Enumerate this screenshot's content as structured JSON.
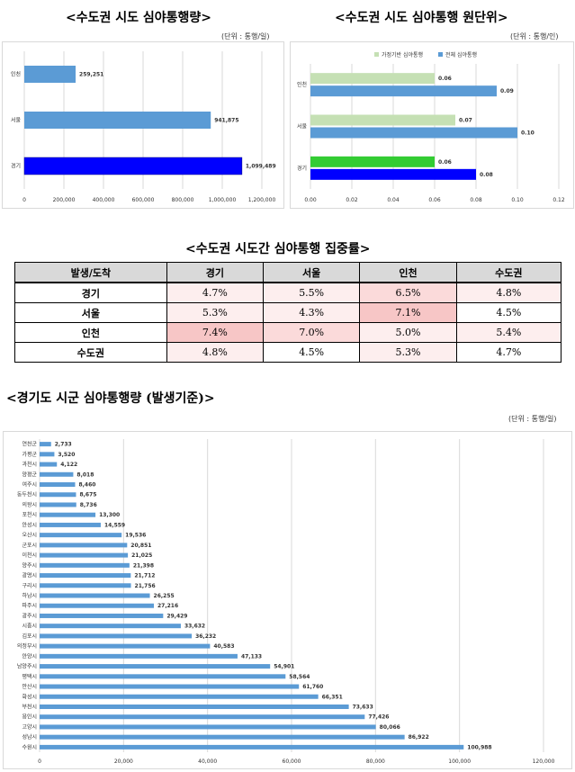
{
  "titles": {
    "left_chart": "<수도권 시도 심야통행량>",
    "right_chart": "<수도권 시도 심야통행 원단위>",
    "table": "<수도권 시도간 심야통행 집중률>",
    "bottom_chart": "<경기도 시군 심야통행량 (발생기준)>"
  },
  "units": {
    "left_chart": "(단위 : 통행/일)",
    "right_chart": "(단위 : 통행/인)",
    "bottom_chart": "(단위 : 통행/일)"
  },
  "colors": {
    "bar_blue": "#5b9bd5",
    "bar_highlight": "#0000ff",
    "bar_light_green": "#c5e0b4",
    "bar_green": "#33cc33",
    "grid": "#d9d9d9",
    "header_gray": "#d9d9d9"
  },
  "chart_data": [
    {
      "type": "bar",
      "orientation": "horizontal",
      "title": "<수도권 시도 심야통행량>",
      "categories": [
        "인천",
        "서울",
        "경기"
      ],
      "values": [
        259251,
        941875,
        1099489
      ],
      "value_labels": [
        "259,251",
        "941,875",
        "1,099,489"
      ],
      "xlim": [
        0,
        1200000
      ],
      "ticks": [
        "0",
        "200,000",
        "400,000",
        "600,000",
        "800,000",
        "1,000,000",
        "1,200,000"
      ],
      "tick_values": [
        0,
        200000,
        400000,
        600000,
        800000,
        1000000,
        1200000
      ],
      "highlight": "경기",
      "grid": true
    },
    {
      "type": "bar",
      "orientation": "horizontal",
      "title": "<수도권 시도 심야통행 원단위>",
      "categories": [
        "인천",
        "서울",
        "경기"
      ],
      "series": [
        {
          "name": "가정기반 심야통행",
          "values": [
            0.06,
            0.07,
            0.06
          ],
          "labels": [
            "0.06",
            "0.07",
            "0.06"
          ]
        },
        {
          "name": "전체 심야통행",
          "values": [
            0.09,
            0.1,
            0.08
          ],
          "labels": [
            "0.09",
            "0.10",
            "0.08"
          ]
        }
      ],
      "xlim": [
        0,
        0.12
      ],
      "ticks": [
        "0.00",
        "0.02",
        "0.04",
        "0.06",
        "0.08",
        "0.10",
        "0.12"
      ],
      "tick_values": [
        0,
        0.02,
        0.04,
        0.06,
        0.08,
        0.1,
        0.12
      ],
      "legend": "top",
      "highlight": "경기",
      "grid": true
    },
    {
      "type": "table",
      "title": "<수도권 시도간 심야통행 집중률>",
      "corner_header": "발생/도착",
      "columns": [
        "경기",
        "서울",
        "인천",
        "수도권"
      ],
      "rows": [
        {
          "label": "경기",
          "values": [
            "4.7%",
            "5.5%",
            "6.5%",
            "4.8%"
          ],
          "levels": [
            1,
            1,
            2,
            1
          ]
        },
        {
          "label": "서울",
          "values": [
            "5.3%",
            "4.3%",
            "7.1%",
            "4.5%"
          ],
          "levels": [
            1,
            1,
            3,
            0
          ]
        },
        {
          "label": "인천",
          "values": [
            "7.4%",
            "7.0%",
            "5.0%",
            "5.4%"
          ],
          "levels": [
            3,
            2,
            1,
            1
          ]
        },
        {
          "label": "수도권",
          "values": [
            "4.8%",
            "4.5%",
            "5.3%",
            "4.7%"
          ],
          "levels": [
            1,
            0,
            1,
            0
          ]
        }
      ]
    },
    {
      "type": "bar",
      "orientation": "horizontal",
      "title": "<경기도 시군 심야통행량 (발생기준)>",
      "categories": [
        "연천군",
        "가평군",
        "과천시",
        "양평군",
        "여주시",
        "동두천시",
        "의왕시",
        "포천시",
        "안성시",
        "오산시",
        "군포시",
        "이천시",
        "양주시",
        "광명시",
        "구리시",
        "하남시",
        "파주시",
        "광주시",
        "시흥시",
        "김포시",
        "의정부시",
        "안양시",
        "남양주시",
        "평택시",
        "안산시",
        "화성시",
        "부천시",
        "용인시",
        "고양시",
        "성남시",
        "수원시"
      ],
      "values": [
        2733,
        3520,
        4122,
        8018,
        8460,
        8675,
        8736,
        13300,
        14559,
        19536,
        20851,
        21025,
        21398,
        21712,
        21756,
        26255,
        27216,
        29429,
        33632,
        36232,
        40583,
        47133,
        54901,
        58564,
        61760,
        66351,
        73633,
        77426,
        80066,
        86922,
        100988
      ],
      "value_labels": [
        "2,733",
        "3,520",
        "4,122",
        "8,018",
        "8,460",
        "8,675",
        "8,736",
        "13,300",
        "14,559",
        "19,536",
        "20,851",
        "21,025",
        "21,398",
        "21,712",
        "21,756",
        "26,255",
        "27,216",
        "29,429",
        "33,632",
        "36,232",
        "40,583",
        "47,133",
        "54,901",
        "58,564",
        "61,760",
        "66,351",
        "73,633",
        "77,426",
        "80,066",
        "86,922",
        "100,988"
      ],
      "xlim": [
        0,
        120000
      ],
      "ticks": [
        "0",
        "20,000",
        "40,000",
        "60,000",
        "80,000",
        "100,000",
        "120,000"
      ],
      "tick_values": [
        0,
        20000,
        40000,
        60000,
        80000,
        100000,
        120000
      ],
      "grid": true
    }
  ]
}
